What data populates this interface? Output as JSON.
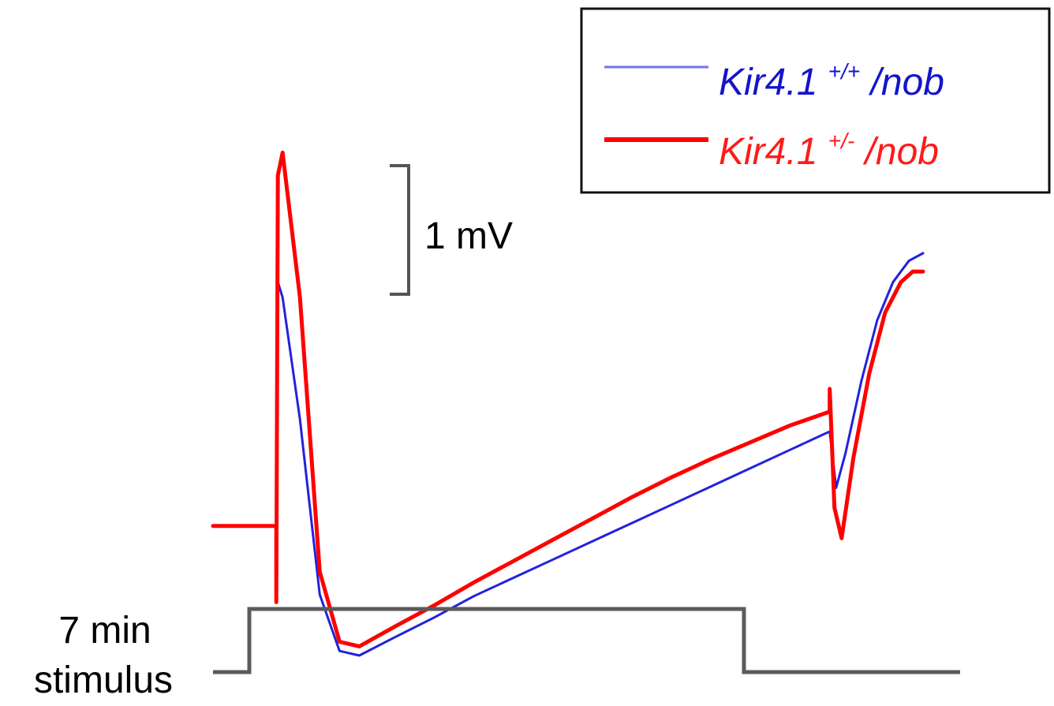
{
  "chart_data": {
    "type": "line",
    "title": "",
    "xlabel": "",
    "ylabel": "",
    "scale_bar": {
      "value": 1,
      "unit": "mV",
      "label": "1 mV"
    },
    "legend": {
      "placement": "top-right",
      "entries": [
        {
          "series": "wt",
          "base": "Kir4.1",
          "sup": "+/+",
          "suffix": "/nob"
        },
        {
          "series": "het",
          "base": "Kir4.1",
          "sup": "+/-",
          "suffix": "/nob"
        }
      ]
    },
    "stimulus": {
      "label_line1": "7 min",
      "label_line2": "stimulus",
      "on_time": 0,
      "off_time": 7
    },
    "xlim": [
      -0.8,
      8.2
    ],
    "ylim": [
      -1.0,
      3.4
    ],
    "series": [
      {
        "key": "wt",
        "color": "#2222dd",
        "points": [
          [
            -0.8,
            0.0
          ],
          [
            0.0,
            0.0
          ],
          [
            0.0,
            -0.5
          ],
          [
            0.02,
            1.6
          ],
          [
            0.08,
            1.5
          ],
          [
            0.3,
            0.7
          ],
          [
            0.55,
            -0.45
          ],
          [
            0.8,
            -0.82
          ],
          [
            1.05,
            -0.85
          ],
          [
            1.5,
            -0.73
          ],
          [
            2.0,
            -0.6
          ],
          [
            2.5,
            -0.46
          ],
          [
            3.0,
            -0.34
          ],
          [
            3.5,
            -0.22
          ],
          [
            4.0,
            -0.1
          ],
          [
            4.5,
            0.02
          ],
          [
            5.0,
            0.14
          ],
          [
            5.5,
            0.26
          ],
          [
            6.0,
            0.38
          ],
          [
            6.5,
            0.5
          ],
          [
            7.0,
            0.62
          ],
          [
            7.08,
            0.25
          ],
          [
            7.2,
            0.48
          ],
          [
            7.4,
            0.95
          ],
          [
            7.6,
            1.35
          ],
          [
            7.8,
            1.6
          ],
          [
            8.0,
            1.74
          ],
          [
            8.18,
            1.79
          ]
        ]
      },
      {
        "key": "het",
        "color": "#ff0000",
        "points": [
          [
            -0.8,
            0.0
          ],
          [
            0.0,
            0.0
          ],
          [
            0.0,
            -0.5
          ],
          [
            0.02,
            2.3
          ],
          [
            0.08,
            2.45
          ],
          [
            0.3,
            1.5
          ],
          [
            0.55,
            -0.3
          ],
          [
            0.8,
            -0.76
          ],
          [
            1.05,
            -0.79
          ],
          [
            1.5,
            -0.66
          ],
          [
            2.0,
            -0.52
          ],
          [
            2.5,
            -0.37
          ],
          [
            3.0,
            -0.23
          ],
          [
            3.5,
            -0.09
          ],
          [
            4.0,
            0.05
          ],
          [
            4.5,
            0.19
          ],
          [
            5.0,
            0.32
          ],
          [
            5.5,
            0.44
          ],
          [
            6.0,
            0.55
          ],
          [
            6.5,
            0.66
          ],
          [
            7.0,
            0.75
          ],
          [
            7.0,
            0.9
          ],
          [
            7.06,
            0.12
          ],
          [
            7.15,
            -0.08
          ],
          [
            7.3,
            0.45
          ],
          [
            7.5,
            1.0
          ],
          [
            7.7,
            1.4
          ],
          [
            7.9,
            1.6
          ],
          [
            8.05,
            1.67
          ],
          [
            8.18,
            1.67
          ]
        ]
      }
    ]
  }
}
